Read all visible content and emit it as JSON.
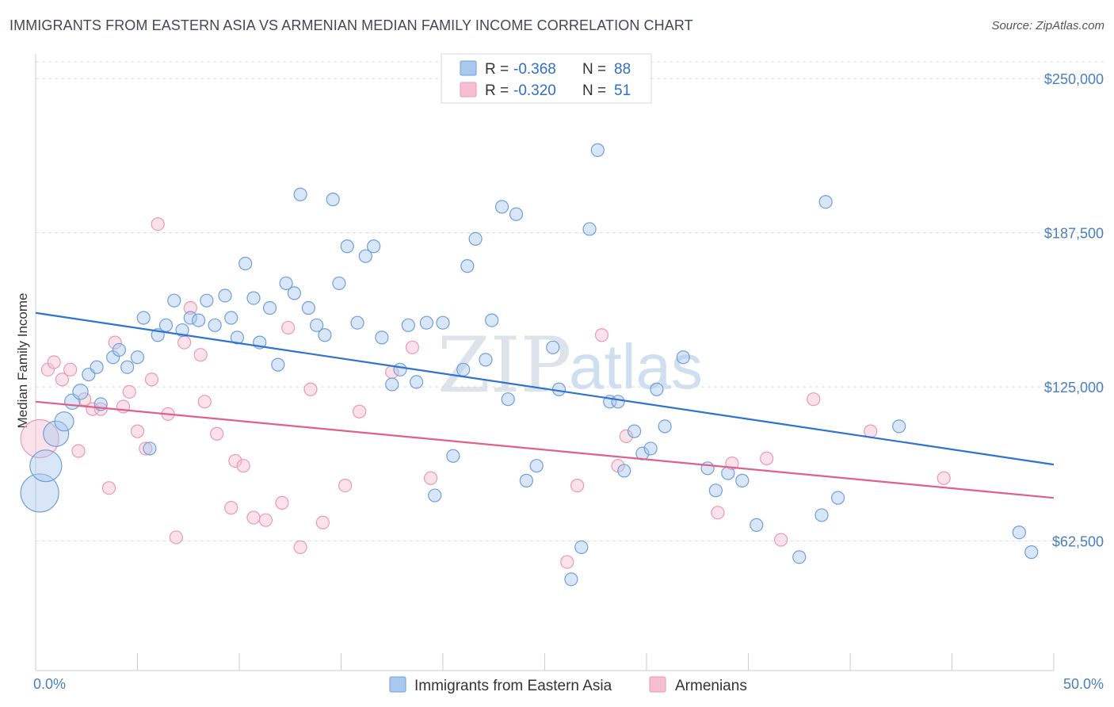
{
  "header": {
    "title": "IMMIGRANTS FROM EASTERN ASIA VS ARMENIAN MEDIAN FAMILY INCOME CORRELATION CHART",
    "source": "Source: ZipAtlas.com"
  },
  "watermark": {
    "zip": "ZIP",
    "atlas": "atlas"
  },
  "colors": {
    "blue_fill": "#a9c8ef",
    "blue_stroke": "#6f9fd8",
    "blue_line": "#2f72d0",
    "pink_fill": "#f6bfd0",
    "pink_stroke": "#e89ab3",
    "pink_line": "#e0608a",
    "grid": "#d8dde3",
    "axis_text": "#4a7fc1"
  },
  "legend": {
    "rows": [
      {
        "r_label": "R =",
        "r_value": "-0.368",
        "n_label": "N =",
        "n_value": "88"
      },
      {
        "r_label": "R =",
        "r_value": "-0.320",
        "n_label": "N =",
        "n_value": "51"
      }
    ]
  },
  "chart_data": {
    "type": "scatter",
    "title": "IMMIGRANTS FROM EASTERN ASIA VS ARMENIAN MEDIAN FAMILY INCOME CORRELATION CHART",
    "xlabel": "",
    "ylabel": "Median Family Income",
    "xlim": [
      0,
      50
    ],
    "ylim": [
      10000,
      260000
    ],
    "x_tick_labels": [
      "0.0%",
      "50.0%"
    ],
    "y_ticks": [
      62500,
      125000,
      187500,
      250000
    ],
    "y_tick_labels": [
      "$62,500",
      "$125,000",
      "$187,500",
      "$250,000"
    ],
    "series": [
      {
        "name": "Immigrants from Eastern Asia",
        "color": "blue",
        "R": -0.368,
        "N": 88,
        "trend": {
          "x": [
            0,
            50
          ],
          "y": [
            155000,
            93500
          ]
        },
        "points": [
          [
            0.2,
            82000,
            3
          ],
          [
            0.5,
            93000,
            2.5
          ],
          [
            1.0,
            106000,
            2
          ],
          [
            1.4,
            111000,
            1.5
          ],
          [
            1.8,
            119000,
            1.2
          ],
          [
            2.2,
            123000,
            1.2
          ],
          [
            2.6,
            130000,
            1
          ],
          [
            3.0,
            133000,
            1
          ],
          [
            3.2,
            118000,
            1
          ],
          [
            3.8,
            137000,
            1
          ],
          [
            4.1,
            140000,
            1
          ],
          [
            4.5,
            133000,
            1
          ],
          [
            5.0,
            137000,
            1
          ],
          [
            5.3,
            153000,
            1
          ],
          [
            5.6,
            100000,
            1
          ],
          [
            6.0,
            146000,
            1
          ],
          [
            6.4,
            150000,
            1
          ],
          [
            6.8,
            160000,
            1
          ],
          [
            7.2,
            148000,
            1
          ],
          [
            7.6,
            153000,
            1
          ],
          [
            8.0,
            152000,
            1
          ],
          [
            8.4,
            160000,
            1
          ],
          [
            8.8,
            150000,
            1
          ],
          [
            9.3,
            162000,
            1
          ],
          [
            9.6,
            153000,
            1
          ],
          [
            9.9,
            145000,
            1
          ],
          [
            10.3,
            175000,
            1
          ],
          [
            10.7,
            161000,
            1
          ],
          [
            11.0,
            143000,
            1
          ],
          [
            11.5,
            157000,
            1
          ],
          [
            11.9,
            134000,
            1
          ],
          [
            12.3,
            167000,
            1
          ],
          [
            12.7,
            163000,
            1
          ],
          [
            13.0,
            203000,
            1
          ],
          [
            13.4,
            157000,
            1
          ],
          [
            13.8,
            150000,
            1
          ],
          [
            14.2,
            146000,
            1
          ],
          [
            14.6,
            201000,
            1
          ],
          [
            14.9,
            167000,
            1
          ],
          [
            15.3,
            182000,
            1
          ],
          [
            15.8,
            151000,
            1
          ],
          [
            16.2,
            178000,
            1
          ],
          [
            16.6,
            182000,
            1
          ],
          [
            17.0,
            145000,
            1
          ],
          [
            17.5,
            126000,
            1
          ],
          [
            17.9,
            132000,
            1
          ],
          [
            18.3,
            150000,
            1
          ],
          [
            18.7,
            127000,
            1
          ],
          [
            19.2,
            151000,
            1
          ],
          [
            19.6,
            81000,
            1
          ],
          [
            20.0,
            151000,
            1
          ],
          [
            20.5,
            97000,
            1
          ],
          [
            21.0,
            132000,
            1
          ],
          [
            21.2,
            174000,
            1
          ],
          [
            21.6,
            185000,
            1
          ],
          [
            22.1,
            136000,
            1
          ],
          [
            22.4,
            152000,
            1
          ],
          [
            22.9,
            198000,
            1
          ],
          [
            23.2,
            120000,
            1
          ],
          [
            23.6,
            195000,
            1
          ],
          [
            24.1,
            87000,
            1
          ],
          [
            24.6,
            93000,
            1
          ],
          [
            25.4,
            141000,
            1
          ],
          [
            25.7,
            124000,
            1
          ],
          [
            26.3,
            47000,
            1
          ],
          [
            26.8,
            60000,
            1
          ],
          [
            27.2,
            189000,
            1
          ],
          [
            27.6,
            221000,
            1
          ],
          [
            28.2,
            119000,
            1
          ],
          [
            28.6,
            119000,
            1
          ],
          [
            28.9,
            91000,
            1
          ],
          [
            29.4,
            107000,
            1
          ],
          [
            29.8,
            98000,
            1
          ],
          [
            30.2,
            100000,
            1
          ],
          [
            30.5,
            124000,
            1
          ],
          [
            30.9,
            109000,
            1
          ],
          [
            31.8,
            137000,
            1
          ],
          [
            33.0,
            92000,
            1
          ],
          [
            33.4,
            83000,
            1
          ],
          [
            34.0,
            90000,
            1
          ],
          [
            34.7,
            87000,
            1
          ],
          [
            35.4,
            69000,
            1
          ],
          [
            37.5,
            56000,
            1
          ],
          [
            38.6,
            73000,
            1
          ],
          [
            38.8,
            200000,
            1
          ],
          [
            39.4,
            80000,
            1
          ],
          [
            42.4,
            109000,
            1
          ],
          [
            48.3,
            66000,
            1
          ],
          [
            48.9,
            58000,
            1
          ]
        ]
      },
      {
        "name": "Armenians",
        "color": "pink",
        "R": -0.32,
        "N": 51,
        "trend": {
          "x": [
            0,
            50
          ],
          "y": [
            119000,
            80000
          ]
        },
        "points": [
          [
            0.2,
            104000,
            3
          ],
          [
            0.6,
            132000,
            1
          ],
          [
            0.9,
            135000,
            1
          ],
          [
            1.3,
            128000,
            1
          ],
          [
            1.7,
            132000,
            1
          ],
          [
            2.1,
            99000,
            1
          ],
          [
            2.4,
            120000,
            1
          ],
          [
            2.8,
            116000,
            1
          ],
          [
            3.2,
            116000,
            1
          ],
          [
            3.6,
            84000,
            1
          ],
          [
            3.9,
            143000,
            1
          ],
          [
            4.3,
            117000,
            1
          ],
          [
            4.6,
            123000,
            1
          ],
          [
            5.0,
            107000,
            1
          ],
          [
            5.4,
            100000,
            1
          ],
          [
            5.7,
            128000,
            1
          ],
          [
            6.0,
            191000,
            1
          ],
          [
            6.5,
            114000,
            1
          ],
          [
            6.9,
            64000,
            1
          ],
          [
            7.3,
            143000,
            1
          ],
          [
            7.6,
            157000,
            1
          ],
          [
            8.1,
            138000,
            1
          ],
          [
            8.3,
            119000,
            1
          ],
          [
            8.9,
            106000,
            1
          ],
          [
            9.6,
            76000,
            1
          ],
          [
            9.8,
            95000,
            1
          ],
          [
            10.2,
            93000,
            1
          ],
          [
            10.7,
            72000,
            1
          ],
          [
            11.3,
            71000,
            1
          ],
          [
            12.1,
            78000,
            1
          ],
          [
            12.4,
            149000,
            1
          ],
          [
            13.0,
            60000,
            1
          ],
          [
            13.5,
            124000,
            1
          ],
          [
            14.1,
            70000,
            1
          ],
          [
            15.2,
            85000,
            1
          ],
          [
            15.9,
            115000,
            1
          ],
          [
            17.5,
            131000,
            1
          ],
          [
            18.5,
            141000,
            1
          ],
          [
            19.4,
            88000,
            1
          ],
          [
            26.1,
            54000,
            1
          ],
          [
            26.6,
            85000,
            1
          ],
          [
            27.8,
            146000,
            1
          ],
          [
            28.6,
            93000,
            1
          ],
          [
            29.0,
            105000,
            1
          ],
          [
            33.5,
            74000,
            1
          ],
          [
            34.2,
            94000,
            1
          ],
          [
            35.9,
            96000,
            1
          ],
          [
            36.6,
            63000,
            1
          ],
          [
            38.2,
            120000,
            1
          ],
          [
            41.0,
            107000,
            1
          ],
          [
            44.6,
            88000,
            1
          ]
        ]
      }
    ]
  }
}
